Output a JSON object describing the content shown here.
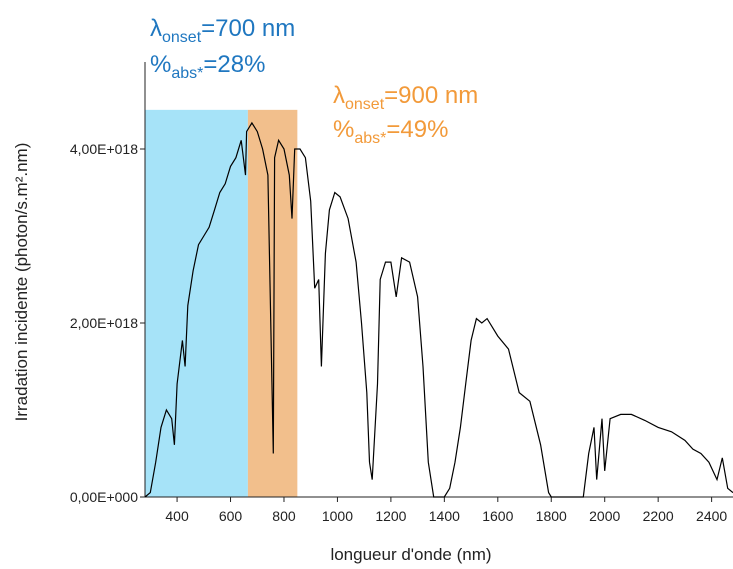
{
  "chart_data": {
    "type": "line",
    "xlabel": "longueur d'onde (nm)",
    "ylabel": "Irradation incidente (photon/s.m².nm)",
    "color": "#000000",
    "x": [
      280,
      300,
      320,
      340,
      360,
      380,
      390,
      400,
      420,
      430,
      440,
      460,
      480,
      500,
      520,
      540,
      560,
      580,
      600,
      620,
      640,
      656,
      660,
      680,
      700,
      720,
      740,
      760,
      765,
      780,
      800,
      820,
      830,
      840,
      860,
      880,
      900,
      915,
      930,
      940,
      955,
      970,
      990,
      1010,
      1040,
      1070,
      1090,
      1110,
      1120,
      1130,
      1150,
      1160,
      1180,
      1200,
      1220,
      1240,
      1270,
      1300,
      1320,
      1340,
      1360,
      1380,
      1400,
      1420,
      1440,
      1460,
      1480,
      1500,
      1520,
      1540,
      1560,
      1580,
      1600,
      1640,
      1680,
      1720,
      1760,
      1790,
      1800,
      1860,
      1920,
      1940,
      1960,
      1970,
      1990,
      2000,
      2020,
      2060,
      2100,
      2150,
      2200,
      2250,
      2300,
      2330,
      2360,
      2390,
      2420,
      2440,
      2460,
      2480
    ],
    "values": [
      0,
      5e+16,
      4e+17,
      8e+17,
      1e+18,
      9e+17,
      6e+17,
      1.3e+18,
      1.8e+18,
      1.5e+18,
      2.2e+18,
      2.6e+18,
      2.9e+18,
      3e+18,
      3.1e+18,
      3.3e+18,
      3.5e+18,
      3.6e+18,
      3.8e+18,
      3.9e+18,
      4.1e+18,
      3.7e+18,
      4.2e+18,
      4.3e+18,
      4.2e+18,
      4e+18,
      3.7e+18,
      5e+17,
      3.9e+18,
      4.1e+18,
      4e+18,
      3.7e+18,
      3.2e+18,
      4e+18,
      4e+18,
      3.9e+18,
      3.4e+18,
      2.4e+18,
      2.5e+18,
      1.5e+18,
      2.8e+18,
      3.3e+18,
      3.5e+18,
      3.45e+18,
      3.2e+18,
      2.7e+18,
      2e+18,
      1.2e+18,
      4e+17,
      2e+17,
      1.3e+18,
      2.5e+18,
      2.7e+18,
      2.7e+18,
      2.3e+18,
      2.75e+18,
      2.7e+18,
      2.3e+18,
      1.5e+18,
      4e+17,
      0,
      0,
      0,
      1e+17,
      4e+17,
      8e+17,
      1.3e+18,
      1.8e+18,
      2.05e+18,
      2e+18,
      2.05e+18,
      1.95e+18,
      1.85e+18,
      1.7e+18,
      1.2e+18,
      1.1e+18,
      6e+17,
      5e+16,
      0,
      0,
      0,
      5e+17,
      8e+17,
      2e+17,
      9e+17,
      3e+17,
      9e+17,
      9.5e+17,
      9.5e+17,
      8.8e+17,
      8e+17,
      7.5e+17,
      6.5e+17,
      5.5e+17,
      5e+17,
      4e+17,
      2e+17,
      4.5e+17,
      1e+17,
      5e+16
    ],
    "xlim": [
      280,
      2480
    ],
    "ylim": [
      0,
      5e+18
    ],
    "xticks": [
      400,
      600,
      800,
      1000,
      1200,
      1400,
      1600,
      1800,
      2000,
      2200,
      2400
    ],
    "yticks": [
      {
        "value": 0,
        "label": "0,00E+000"
      },
      {
        "value": 2e+18,
        "label": "2,00E+018"
      },
      {
        "value": 4e+18,
        "label": "4,00E+018"
      }
    ],
    "spans": [
      {
        "from": 280,
        "to": 665,
        "top": 4.45e+18,
        "color": "#a6e3f8"
      },
      {
        "from": 665,
        "to": 850,
        "top": 4.45e+18,
        "color": "#f2bf8c"
      }
    ],
    "annotations": [
      {
        "color": "#1f77c0",
        "lines": [
          [
            "λ",
            "onset",
            "=700 nm"
          ],
          [
            "%",
            "abs*",
            "=28%"
          ]
        ]
      },
      {
        "color": "#f29a3a",
        "lines": [
          [
            "λ",
            "onset",
            "=900 nm"
          ],
          [
            "%",
            "abs*",
            "=49%"
          ]
        ]
      }
    ]
  }
}
